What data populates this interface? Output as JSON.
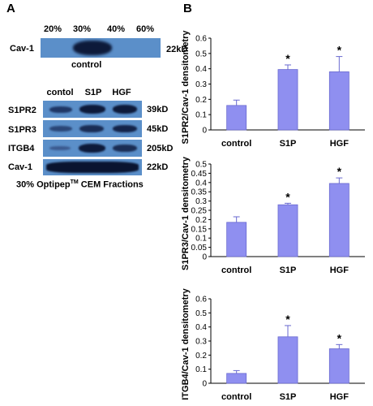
{
  "panels": {
    "a_label": "A",
    "b_label": "B"
  },
  "gradient": {
    "fractions": [
      "20%",
      "30%",
      "40%",
      "60%"
    ],
    "row_label": "Cav-1",
    "kd": "22kD",
    "caption": "control"
  },
  "blot": {
    "lanes": [
      "contol",
      "S1P",
      "HGF"
    ],
    "rows": [
      {
        "label": "S1PR2",
        "kd": "39kD"
      },
      {
        "label": "S1PR3",
        "kd": "45kD"
      },
      {
        "label": "ITGB4",
        "kd": "205kD"
      },
      {
        "label": "Cav-1",
        "kd": "22kD"
      }
    ],
    "caption_pre": "30% Optipep",
    "caption_sup": "TM",
    "caption_post": " CEM Fractions"
  },
  "colors": {
    "bar": "#8f8ff0",
    "blot": "#5b8fc9",
    "band": "#0d1a3a"
  },
  "chart_data": [
    {
      "type": "bar",
      "categories": [
        "control",
        "S1P",
        "HGF"
      ],
      "values": [
        0.16,
        0.395,
        0.38
      ],
      "errors": [
        0.035,
        0.03,
        0.1
      ],
      "significance": [
        "",
        "*",
        "*"
      ],
      "ylabel": "S1PR2/Cav-1 densitometry",
      "ylim": [
        0,
        0.6
      ],
      "yticks": [
        "0",
        "0.1",
        "0.2",
        "0.3",
        "0.4",
        "0.5",
        "0.6"
      ]
    },
    {
      "type": "bar",
      "categories": [
        "control",
        "S1P",
        "HGF"
      ],
      "values": [
        0.185,
        0.28,
        0.395
      ],
      "errors": [
        0.03,
        0.008,
        0.03
      ],
      "significance": [
        "",
        "*",
        "*"
      ],
      "ylabel": "S1PR3/Cav-1 densitometry",
      "ylim": [
        0,
        0.5
      ],
      "yticks": [
        "0",
        "0.05",
        "0.1",
        "0.15",
        "0.2",
        "0.25",
        "0.3",
        "0.35",
        "0.4",
        "0.45",
        "0.5"
      ]
    },
    {
      "type": "bar",
      "categories": [
        "control",
        "S1P",
        "HGF"
      ],
      "values": [
        0.07,
        0.33,
        0.245
      ],
      "errors": [
        0.02,
        0.08,
        0.03
      ],
      "significance": [
        "",
        "*",
        "*"
      ],
      "ylabel": "ITGB4/Cav-1 densitometry",
      "ylim": [
        0,
        0.6
      ],
      "yticks": [
        "0",
        "0.1",
        "0.2",
        "0.3",
        "0.4",
        "0.5",
        "0.6"
      ]
    }
  ]
}
